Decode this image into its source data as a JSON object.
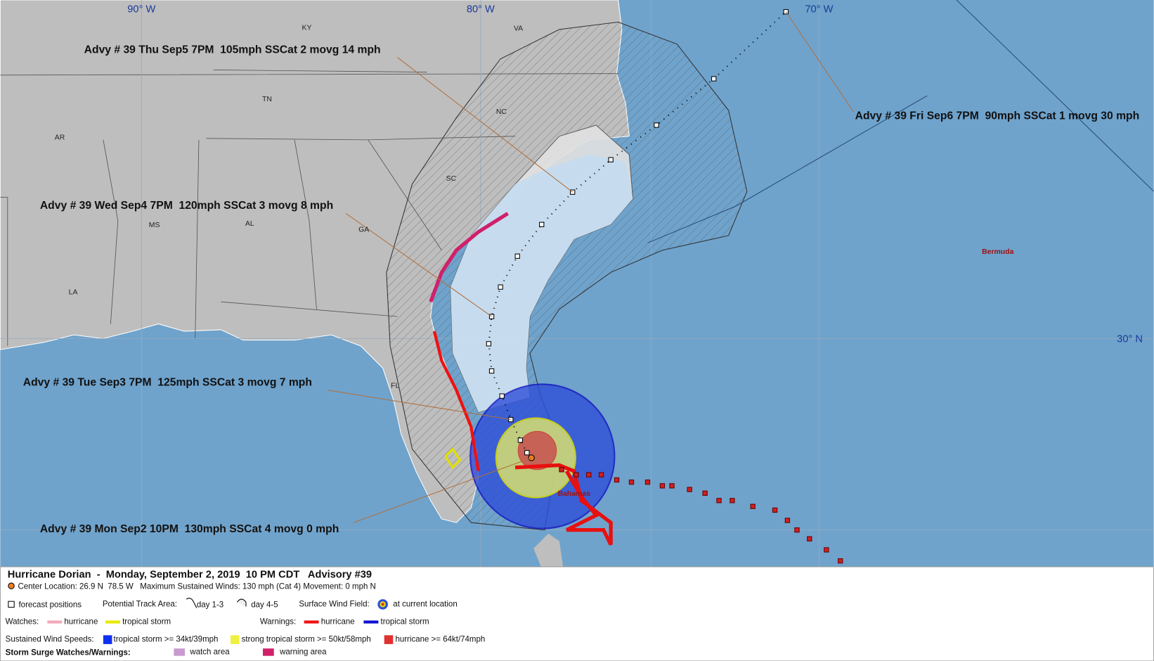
{
  "map": {
    "grid_labels": [
      "90° W",
      "80° W",
      "70° W",
      "30° N"
    ],
    "state_labels": [
      "KY",
      "VA",
      "TN",
      "NC",
      "AR",
      "SC",
      "MS",
      "AL",
      "GA",
      "LA",
      "FL"
    ],
    "place_labels": [
      "Bermuda",
      "Bahamas"
    ]
  },
  "advisories": [
    "Advy # 39 Thu Sep5 7PM  105mph SSCat 2 movg 14 mph",
    "Advy # 39 Fri Sep6 7PM  90mph SSCat 1 movg 30 mph",
    "Advy # 39 Wed Sep4 7PM  120mph SSCat 3 movg 8 mph",
    "Advy # 39 Tue Sep3 7PM  125mph SSCat 3 movg 7 mph",
    "Advy # 39 Mon Sep2 10PM  130mph SSCat 4 movg 0 mph"
  ],
  "legend": {
    "title": "Hurricane Dorian  -  Monday, September 2, 2019  10 PM CDT   Advisory #39",
    "subtitle": "Center Location: 26.9 N  78.5 W   Maximum Sustained Winds: 130 mph (Cat 4) Movement: 0 mph N",
    "row1": [
      "forecast positions",
      "Potential Track Area:",
      "day 1-3",
      "day 4-5",
      "Surface Wind Field:",
      "at current location"
    ],
    "row2": [
      "Watches:",
      "hurricane",
      "tropical storm",
      "Warnings:",
      "hurricane",
      "tropical storm"
    ],
    "row3": [
      "Sustained Wind Speeds:",
      "tropical storm >= 34kt/39mph",
      "strong tropical storm >= 50kt/58mph",
      "hurricane >= 64kt/74mph"
    ],
    "row4": [
      "Storm Surge Watches/Warnings:",
      "watch area",
      "warning area"
    ]
  }
}
